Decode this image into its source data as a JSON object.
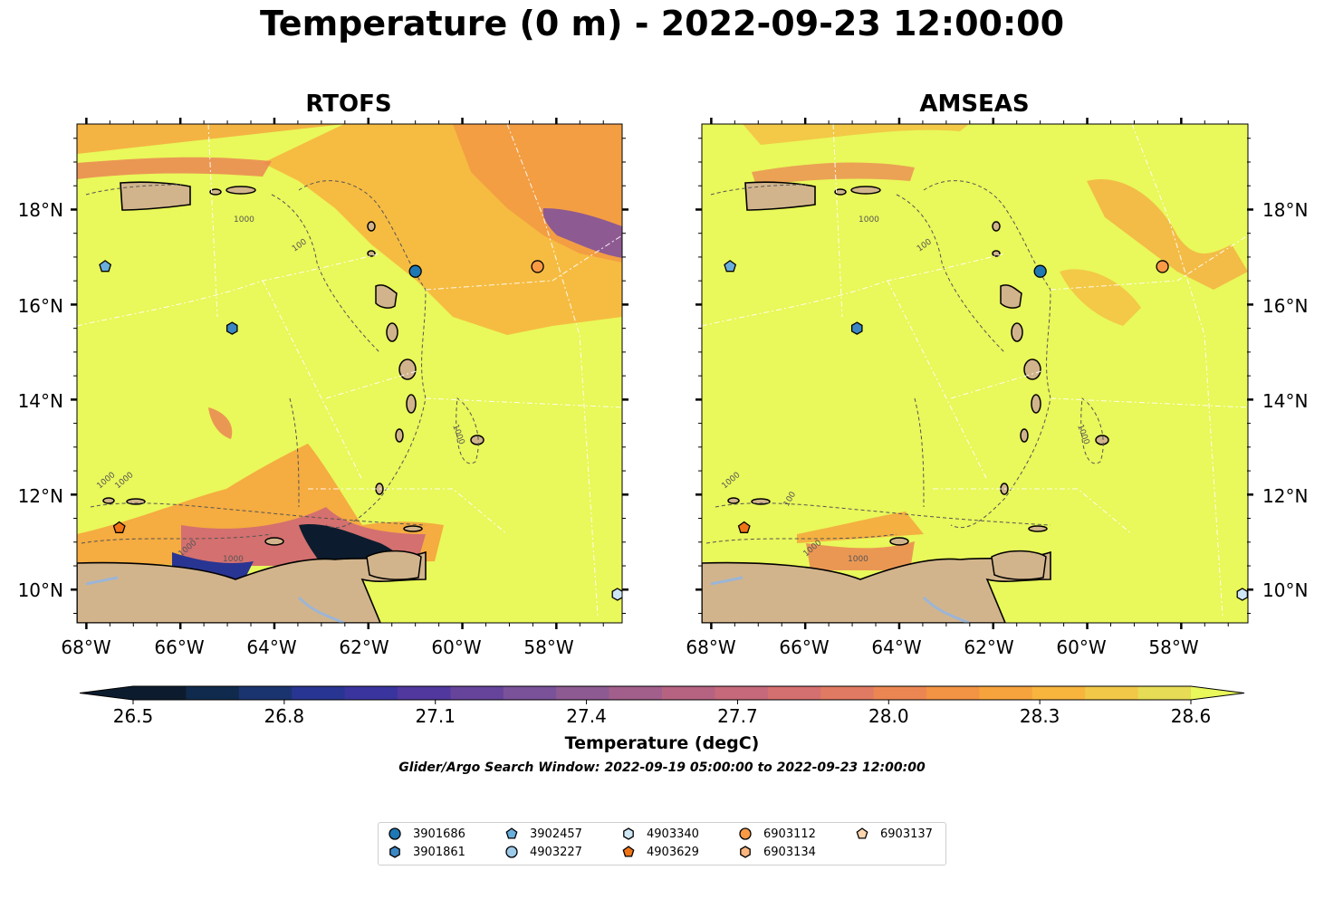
{
  "title": "Temperature (0 m) - 2022-09-23 12:00:00",
  "panels": [
    {
      "title": "RTOFS",
      "lat_labels": [
        "18°N",
        "16°N",
        "14°N",
        "12°N",
        "10°N"
      ],
      "lon_labels": [
        "68°W",
        "66°W",
        "64°W",
        "62°W",
        "60°W",
        "58°W"
      ],
      "contour_labels": [
        "1000",
        "100",
        "1000",
        "1000",
        "1000",
        "1000",
        "1000"
      ]
    },
    {
      "title": "AMSEAS",
      "lat_labels": [
        "18°N",
        "16°N",
        "14°N",
        "12°N",
        "10°N"
      ],
      "lon_labels": [
        "68°W",
        "66°W",
        "64°W",
        "62°W",
        "60°W",
        "58°W"
      ],
      "contour_labels": [
        "1000",
        "100",
        "100",
        "1000",
        "1000",
        "1000",
        "1000"
      ]
    }
  ],
  "map_extent": {
    "lon_min": -68.2,
    "lon_max": -56.6,
    "lat_min": 9.3,
    "lat_max": 19.8
  },
  "colorbar": {
    "label": "Temperature (degC)",
    "ticks": [
      "26.5",
      "26.8",
      "27.1",
      "27.4",
      "27.7",
      "28.0",
      "28.3",
      "28.6"
    ],
    "min": 26.5,
    "max": 28.6,
    "extend": "both",
    "colors": [
      "#0c1c2e",
      "#0f2a4c",
      "#1a3470",
      "#293592",
      "#3a349e",
      "#51389f",
      "#66449c",
      "#7a5299",
      "#8e5a92",
      "#a25f8b",
      "#b66382",
      "#c6697a",
      "#d4706f",
      "#e07a62",
      "#eb8653",
      "#f29444",
      "#f6a33d",
      "#f7b53e",
      "#f1c848",
      "#e6dc55"
    ]
  },
  "search_window": "Glider/Argo Search Window: 2022-09-19 05:00:00 to 2022-09-23 12:00:00",
  "colors": {
    "land": "#d2b48c",
    "sea_warm": "#e9f85a",
    "river": "#9bb5d6"
  },
  "floats": [
    {
      "id": "3901686",
      "shape": "circle",
      "color": "#1f77b4",
      "lon": -61.0,
      "lat": 16.7
    },
    {
      "id": "3901861",
      "shape": "hexagon",
      "color": "#3b87c4",
      "lon": -64.9,
      "lat": 15.5
    },
    {
      "id": "3902457",
      "shape": "pentagon",
      "color": "#6aaedc",
      "lon": -67.6,
      "lat": 16.8
    },
    {
      "id": "4903227",
      "shape": "circle",
      "color": "#9ccae8",
      "lon": null,
      "lat": null
    },
    {
      "id": "4903340",
      "shape": "hexagon",
      "color": "#cfe6f5",
      "lon": -56.7,
      "lat": 9.9
    },
    {
      "id": "4903629",
      "shape": "pentagon",
      "color": "#f07416",
      "lon": -67.3,
      "lat": 11.3
    },
    {
      "id": "6903112",
      "shape": "circle",
      "color": "#fb9a45",
      "lon": -58.4,
      "lat": 16.8
    },
    {
      "id": "6903134",
      "shape": "hexagon",
      "color": "#fcb67d",
      "lon": null,
      "lat": null
    },
    {
      "id": "6903137",
      "shape": "pentagon",
      "color": "#fdd6b0",
      "lon": null,
      "lat": null
    }
  ]
}
